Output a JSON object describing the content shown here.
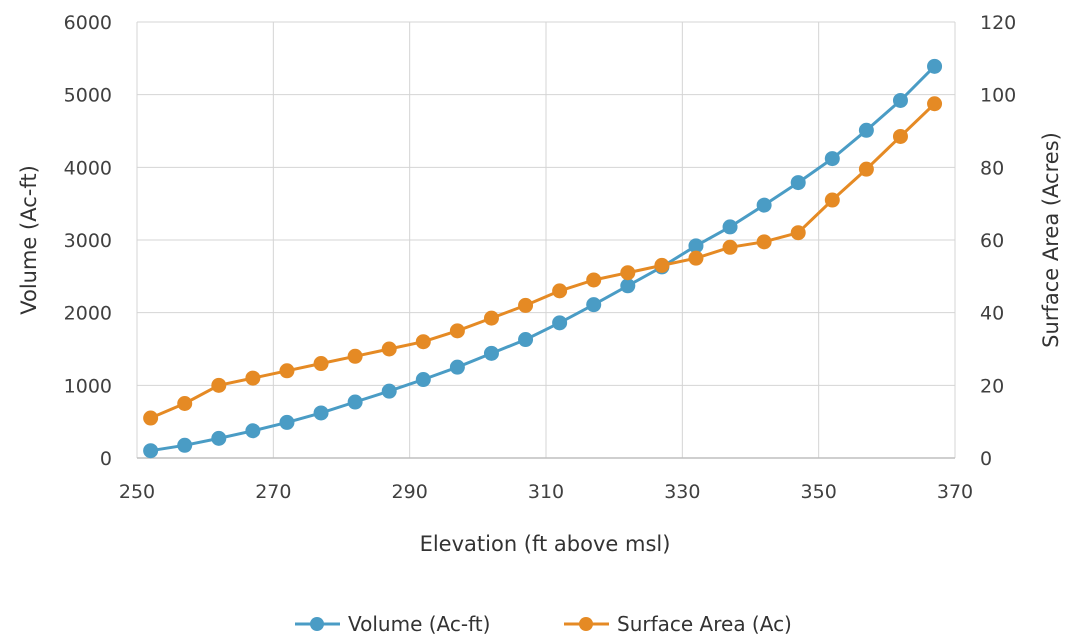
{
  "chart_data": {
    "type": "line",
    "xlabel": "Elevation (ft above msl)",
    "ylabel_left": "Volume (Ac-ft)",
    "ylabel_right": "Surface Area (Acres)",
    "xlim": [
      250,
      370
    ],
    "ylim_left": [
      0,
      6000
    ],
    "ylim_right": [
      0,
      120
    ],
    "x_ticks": [
      "250",
      "270",
      "290",
      "310",
      "330",
      "350",
      "370"
    ],
    "y_left_ticks": [
      "0",
      "1000",
      "2000",
      "3000",
      "4000",
      "5000",
      "6000"
    ],
    "y_right_ticks": [
      "0",
      "20",
      "40",
      "60",
      "80",
      "100",
      "120"
    ],
    "grid": true,
    "legend_position": "bottom",
    "series": [
      {
        "name": "Volume (Ac-ft)",
        "axis": "left",
        "color": "#4a9cc5",
        "x": [
          252,
          257,
          262,
          267,
          272,
          277,
          282,
          287,
          292,
          297,
          302,
          307,
          312,
          317,
          322,
          327,
          332,
          337,
          342,
          347,
          352,
          357,
          362,
          367
        ],
        "values": [
          100,
          175,
          270,
          375,
          490,
          620,
          770,
          920,
          1080,
          1250,
          1440,
          1630,
          1860,
          2110,
          2370,
          2630,
          2920,
          3180,
          3480,
          3790,
          4120,
          4510,
          4920,
          5390
        ]
      },
      {
        "name": "Surface Area (Ac)",
        "axis": "right",
        "color": "#e58a24",
        "x": [
          252,
          257,
          262,
          267,
          272,
          277,
          282,
          287,
          292,
          297,
          302,
          307,
          312,
          317,
          322,
          327,
          332,
          337,
          342,
          347,
          352,
          357,
          362,
          367
        ],
        "values": [
          11,
          15,
          20,
          22,
          24,
          26,
          28,
          30,
          32,
          35,
          38.5,
          42,
          46,
          49,
          51,
          53,
          55,
          58,
          59.5,
          62,
          71,
          79.5,
          88.5,
          97.5
        ]
      }
    ]
  }
}
